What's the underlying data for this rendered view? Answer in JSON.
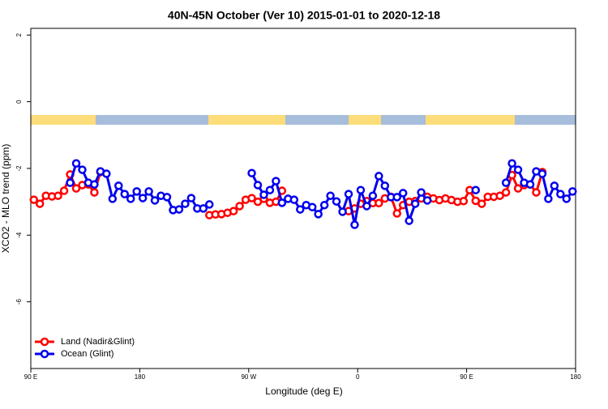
{
  "chart_data": {
    "type": "line",
    "title": "40N-45N October (Ver 10)   2015-01-01 to 2020-12-18",
    "x_label": "Longitude (deg E)",
    "y_label": "XCO2 - MLO trend (ppm)",
    "xlim": [
      90,
      540
    ],
    "ylim": [
      -8,
      2.2
    ],
    "xticks": [
      {
        "value": 90,
        "label": "90 E"
      },
      180,
      {
        "value": 270,
        "label": "90 W"
      },
      {
        "value": 360,
        "label": "0"
      },
      {
        "value": 450,
        "label": "90 E"
      },
      {
        "value": 540,
        "label": "180"
      }
    ],
    "yticks": [
      -6,
      -4,
      -2,
      0,
      2
    ],
    "legend": "bottom-left",
    "x": [
      92.5,
      97.5,
      102.5,
      107.5,
      112.5,
      117.5,
      122.5,
      127.5,
      132.5,
      137.5,
      142.5,
      147.5,
      152.5,
      157.5,
      162.5,
      167.5,
      172.5,
      177.5,
      182.5,
      187.5,
      192.5,
      197.5,
      202.5,
      207.5,
      212.5,
      217.5,
      222.5,
      227.5,
      232.5,
      237.5,
      242.5,
      247.5,
      252.5,
      257.5,
      262.5,
      267.5,
      272.5,
      277.5,
      282.5,
      287.5,
      292.5,
      297.5,
      302.5,
      307.5,
      312.5,
      317.5,
      322.5,
      327.5,
      332.5,
      337.5,
      342.5,
      347.5,
      352.5,
      357.5,
      362.5,
      367.5,
      372.5,
      377.5,
      382.5,
      387.5,
      392.5,
      397.5,
      402.5,
      407.5,
      412.5,
      417.5,
      422.5,
      427.5,
      432.5,
      437.5,
      442.5,
      447.5,
      452.5,
      457.5,
      462.5,
      467.5,
      472.5,
      477.5,
      482.5,
      487.5,
      492.5,
      497.5,
      502.5,
      507.5,
      512.5,
      517.5,
      522.5,
      527.5,
      532.5,
      537.5
    ],
    "series": [
      {
        "name": "Land (Nadir&Glint)",
        "color": "#ff0000",
        "values": [
          -2.94,
          -3.06,
          -2.82,
          -2.84,
          -2.82,
          -2.67,
          -2.18,
          -2.6,
          -2.5,
          -2.48,
          -2.72,
          -2.11,
          null,
          null,
          null,
          null,
          null,
          null,
          null,
          null,
          null,
          null,
          null,
          null,
          null,
          null,
          null,
          null,
          null,
          -3.4,
          -3.38,
          -3.37,
          -3.33,
          -3.28,
          -3.13,
          -2.94,
          -2.89,
          -3.0,
          -2.91,
          -3.03,
          -3.0,
          -2.67,
          null,
          null,
          null,
          null,
          null,
          null,
          null,
          null,
          null,
          null,
          -3.28,
          -3.2,
          -3.06,
          -2.98,
          -3.04,
          -3.04,
          -2.9,
          -2.85,
          -3.35,
          -3.1,
          -3.0,
          -2.98,
          -2.9,
          -2.85,
          -2.9,
          -2.95,
          -2.9,
          -2.95,
          -3.0,
          -2.98,
          -2.65,
          -2.97,
          -3.06,
          -2.85,
          -2.85,
          -2.82,
          -2.72,
          -2.2,
          -2.6,
          -2.5,
          -2.48,
          -2.72,
          -2.11,
          null,
          null,
          null,
          null,
          null
        ]
      },
      {
        "name": "Ocean (Glint)",
        "color": "#0000ee",
        "values": [
          null,
          null,
          null,
          null,
          null,
          null,
          -2.43,
          -1.85,
          -2.04,
          -2.43,
          -2.48,
          -2.09,
          -2.16,
          -2.91,
          -2.52,
          -2.77,
          -2.91,
          -2.69,
          -2.89,
          -2.69,
          -2.96,
          -2.82,
          -2.86,
          -3.25,
          -3.23,
          -3.06,
          -2.89,
          -3.2,
          -3.2,
          -3.08,
          null,
          null,
          null,
          null,
          null,
          null,
          -2.14,
          -2.5,
          -2.79,
          -2.65,
          -2.38,
          -3.03,
          -2.91,
          -2.94,
          -3.23,
          -3.1,
          -3.16,
          -3.37,
          -3.1,
          -2.82,
          -2.99,
          -3.3,
          -2.77,
          -3.69,
          -2.65,
          -3.13,
          -2.82,
          -2.23,
          -2.52,
          -2.86,
          -2.86,
          -2.74,
          -3.57,
          -3.06,
          -2.72,
          -2.96,
          null,
          null,
          null,
          null,
          null,
          null,
          null,
          -2.65,
          null,
          null,
          null,
          null,
          -2.43,
          -1.85,
          -2.04,
          -2.43,
          -2.48,
          -2.09,
          -2.16,
          -2.91,
          -2.52,
          -2.77,
          -2.91,
          -2.69
        ]
      }
    ]
  }
}
